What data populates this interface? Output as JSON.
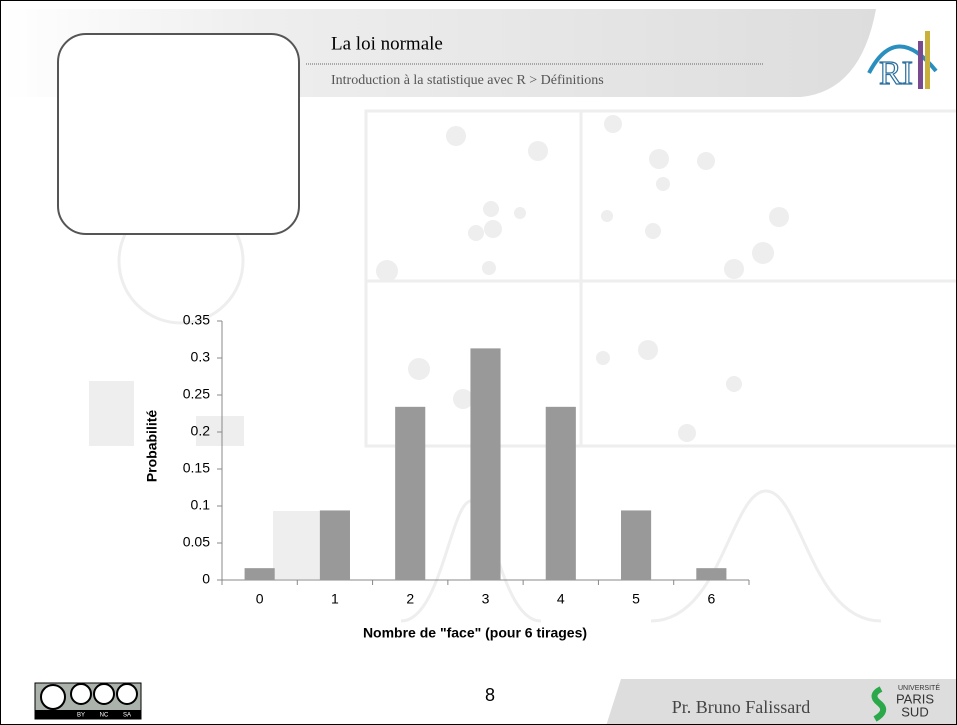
{
  "slide": {
    "title": "La loi normale",
    "breadcrumb": "Introduction à la statistique avec R > Définitions",
    "page_number": "8",
    "author": "Pr. Bruno Falissard",
    "license": [
      "BY",
      "NC",
      "SA"
    ],
    "university": [
      "UNIVERSITÉ",
      "PARIS",
      "SUD"
    ]
  },
  "chart_data": {
    "type": "bar",
    "categories": [
      "0",
      "1",
      "2",
      "3",
      "4",
      "5",
      "6"
    ],
    "values": [
      0.016,
      0.094,
      0.234,
      0.313,
      0.234,
      0.094,
      0.016
    ],
    "color": "#999999",
    "ylim": [
      0,
      0.35
    ],
    "yticks": [
      0,
      0.05,
      0.1,
      0.15,
      0.2,
      0.25,
      0.3,
      0.35
    ],
    "x_label": "Nombre de \"face\" (pour 6 tirages)",
    "y_label": "Probabilité",
    "grid": false
  }
}
